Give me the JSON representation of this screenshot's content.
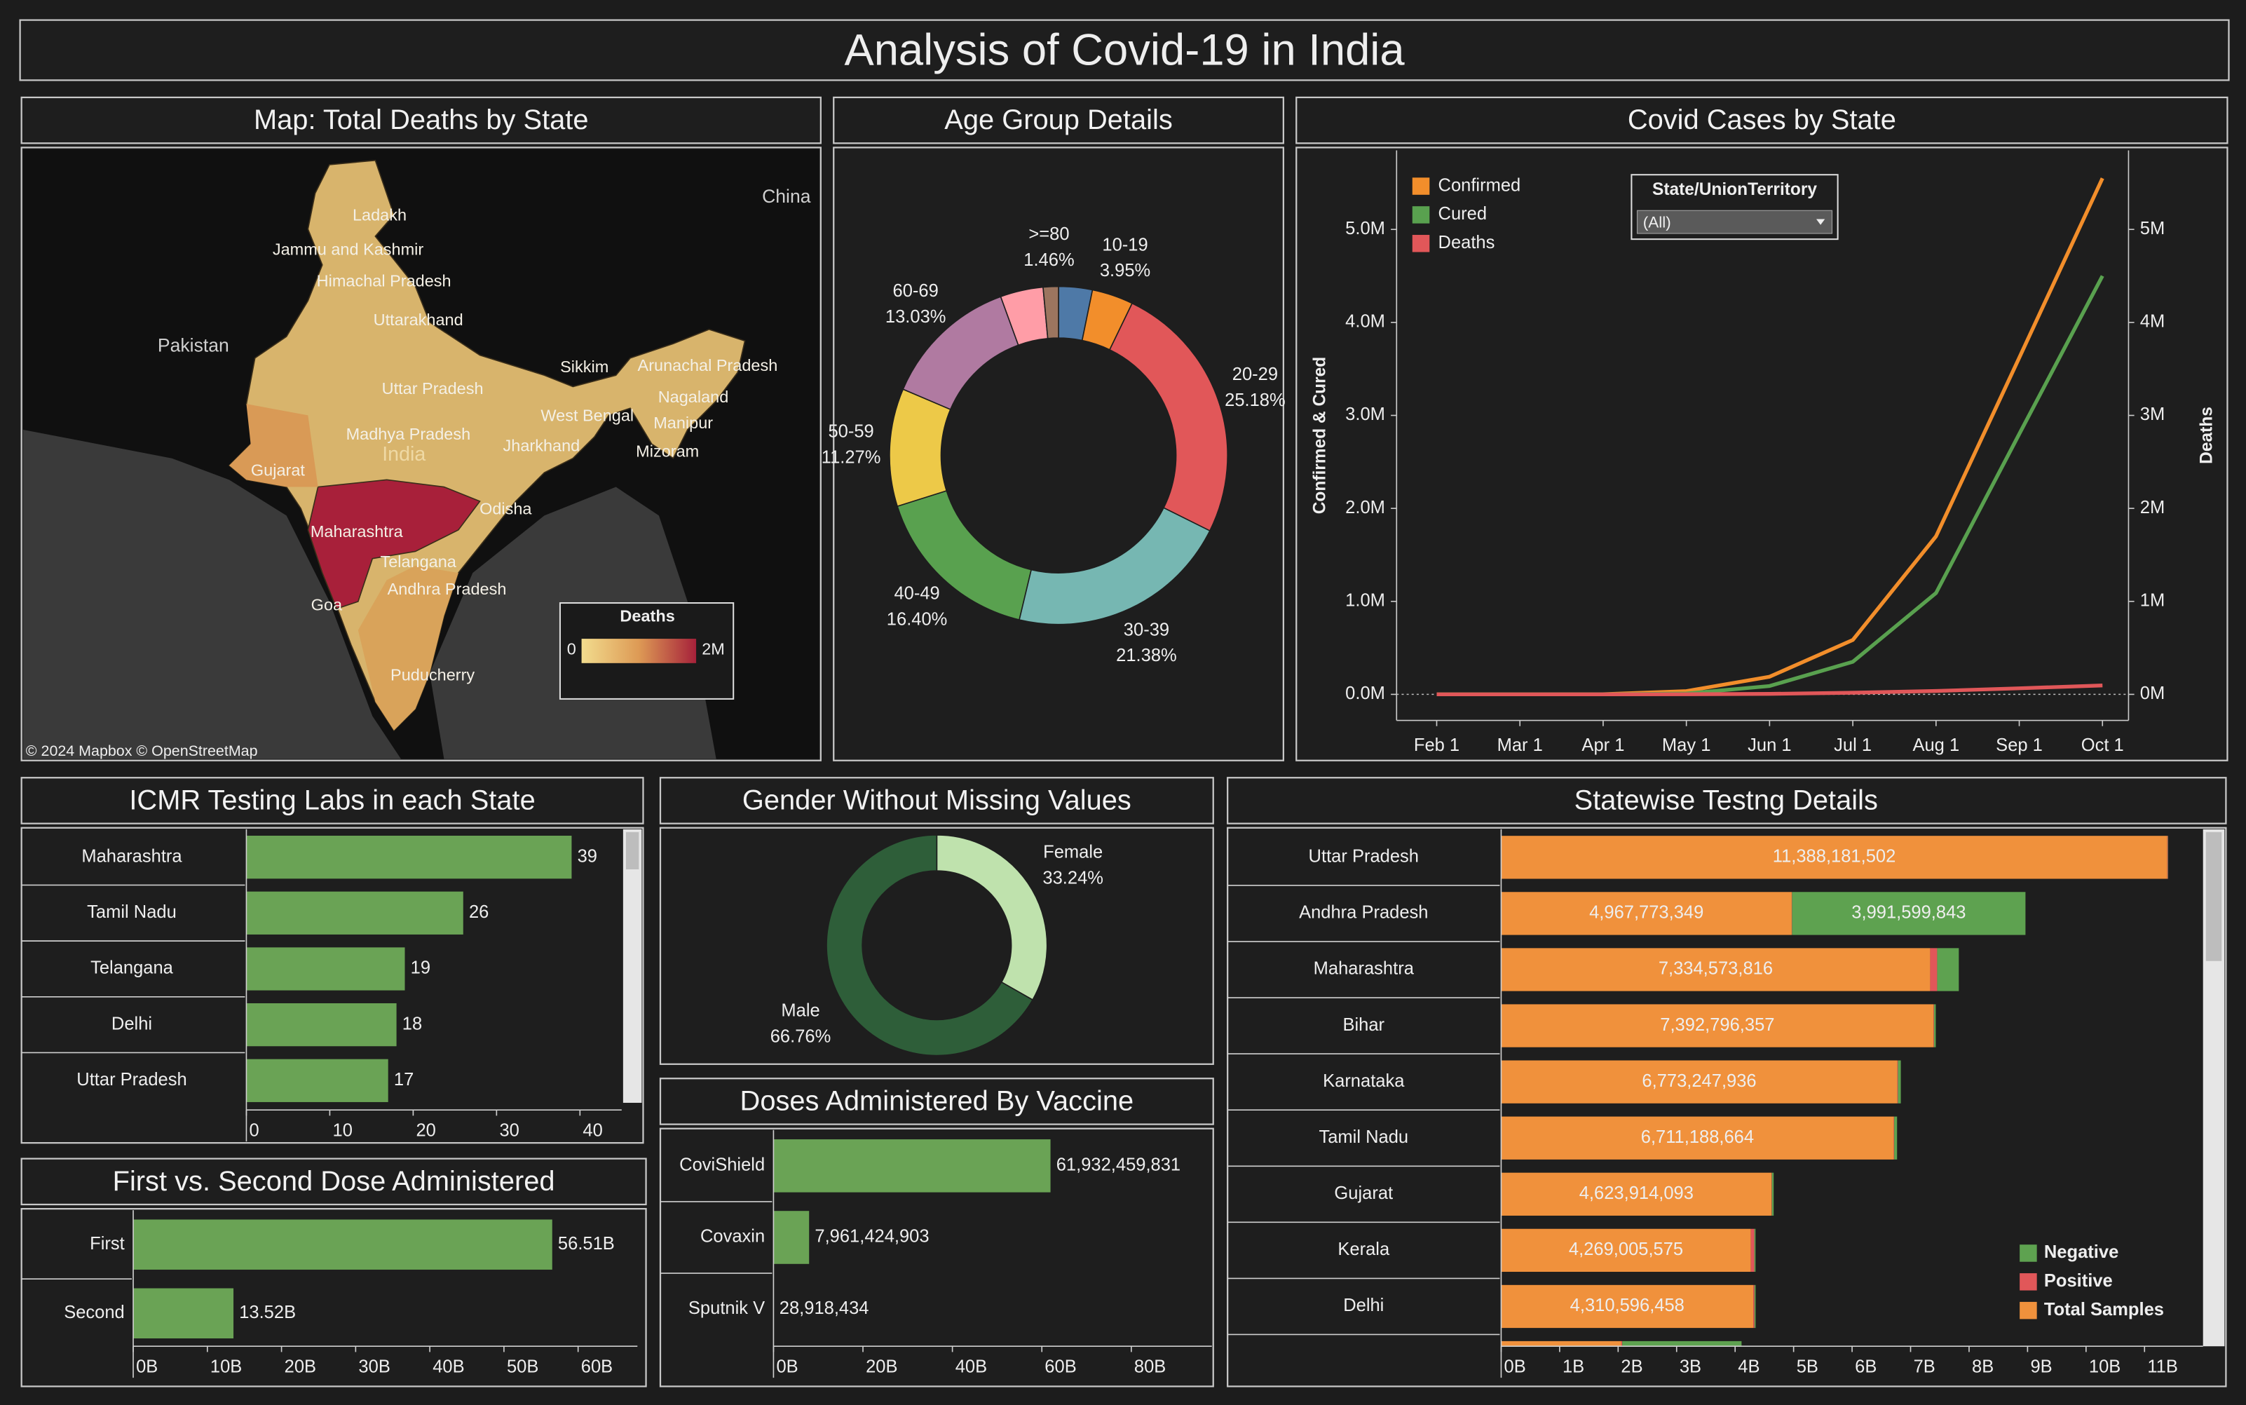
{
  "title": "Analysis of Covid-19 in India",
  "map": {
    "title": "Map: Total Deaths by State",
    "places": [
      "Ladakh",
      "Jammu and Kashmir",
      "Himachal Pradesh",
      "Uttarakhand",
      "Pakistan",
      "China",
      "Sikkim",
      "Arunachal Pradesh",
      "Nagaland",
      "West Bengal",
      "Manipur",
      "Uttar Pradesh",
      "Madhya Pradesh",
      "Jharkhand",
      "India",
      "Mizoram",
      "Gujarat",
      "Odisha",
      "Maharashtra",
      "Telangana",
      "Andhra Pradesh",
      "Goa",
      "Puducherry"
    ],
    "legend": {
      "title": "Deaths",
      "min": "0",
      "max": "2M"
    },
    "credit": "© 2024 Mapbox  © OpenStreetMap"
  },
  "chart_data": [
    {
      "type": "pie",
      "donut": true,
      "title": "Age Group Details",
      "categories": [
        null,
        "10-19",
        "20-29",
        "30-39",
        "40-49",
        "50-59",
        "60-69",
        null,
        ">=80"
      ],
      "values": [
        3.22,
        3.95,
        25.18,
        21.38,
        16.4,
        11.27,
        13.03,
        4.1,
        1.46
      ],
      "value_labels": [
        null,
        "3.95%",
        "25.18%",
        "21.38%",
        "16.40%",
        "11.27%",
        "13.03%",
        null,
        "1.46%"
      ],
      "colors": [
        "#4e79a7",
        "#f28e2b",
        "#e15759",
        "#76b7b2",
        "#59a14f",
        "#edc948",
        "#b07aa1",
        "#ff9da7",
        "#9c755f"
      ]
    },
    {
      "type": "line",
      "title": "Covid Cases by State",
      "x": [
        "Feb 1",
        "Mar 1",
        "Apr 1",
        "May 1",
        "Jun 1",
        "Jul 1",
        "Aug 1",
        "Sep 1",
        "Oct 1"
      ],
      "series": [
        {
          "name": "Confirmed",
          "color": "#f28e2b",
          "values": [
            1,
            3,
            1998,
            35000,
            190000,
            585000,
            1700000,
            3620000,
            5550000
          ]
        },
        {
          "name": "Cured",
          "color": "#59a14f",
          "values": [
            0,
            3,
            150,
            9000,
            90000,
            350000,
            1090000,
            2800000,
            4500000
          ]
        },
        {
          "name": "Deaths",
          "color": "#e15759",
          "axis": "y2",
          "values": [
            0,
            0,
            50,
            1150,
            5400,
            17400,
            36500,
            65300,
            96000
          ]
        }
      ],
      "ylim": [
        -280000,
        5850000
      ],
      "yticks": [
        {
          "value": 0,
          "label": "0.0M"
        },
        {
          "value": 1000000,
          "label": "1.0M"
        },
        {
          "value": 2000000,
          "label": "2.0M"
        },
        {
          "value": 3000000,
          "label": "3.0M"
        },
        {
          "value": 4000000,
          "label": "4.0M"
        },
        {
          "value": 5000000,
          "label": "5.0M"
        }
      ],
      "y2lim": [
        -280000,
        5850000
      ],
      "y2ticks": [
        {
          "value": 0,
          "label": "0M"
        },
        {
          "value": 1000000,
          "label": "1M"
        },
        {
          "value": 2000000,
          "label": "2M"
        },
        {
          "value": 3000000,
          "label": "3M"
        },
        {
          "value": 4000000,
          "label": "4M"
        },
        {
          "value": 5000000,
          "label": "5M"
        }
      ],
      "ylabel": "Confirmed & Cured",
      "y2label": "Deaths",
      "legend": "top-left",
      "filter": {
        "title": "State/UnionTerritory",
        "value": "(All)"
      }
    },
    {
      "type": "hbar",
      "title": "ICMR Testing Labs in each State",
      "categories": [
        "Maharashtra",
        "Tamil Nadu",
        "Telangana",
        "Delhi",
        "Uttar Pradesh"
      ],
      "values": [
        39,
        26,
        19,
        18,
        17
      ],
      "color": "#6aa355",
      "xlim": [
        0,
        45
      ],
      "xticks": [
        0,
        10,
        20,
        30,
        40
      ]
    },
    {
      "type": "pie",
      "donut": true,
      "title": "Gender Without Missing Values",
      "categories": [
        "Female",
        "Male"
      ],
      "values": [
        33.24,
        66.76
      ],
      "value_labels": [
        "33.24%",
        "66.76%"
      ],
      "colors": [
        "#bfe2ad",
        "#2e5e39"
      ]
    },
    {
      "type": "hbar",
      "title": "First vs. Second Dose Administered",
      "categories": [
        "First",
        "Second"
      ],
      "values": [
        56510000000,
        13520000000
      ],
      "value_labels": [
        "56.51B",
        "13.52B"
      ],
      "color": "#6aa355",
      "xlim": [
        0,
        68000000000
      ],
      "xticks": [
        {
          "value": 0,
          "label": "0B"
        },
        {
          "value": 10000000000,
          "label": "10B"
        },
        {
          "value": 20000000000,
          "label": "20B"
        },
        {
          "value": 30000000000,
          "label": "30B"
        },
        {
          "value": 40000000000,
          "label": "40B"
        },
        {
          "value": 50000000000,
          "label": "50B"
        },
        {
          "value": 60000000000,
          "label": "60B"
        }
      ]
    },
    {
      "type": "hbar",
      "title": "Doses Administered By Vaccine",
      "categories": [
        "CoviShield",
        "Covaxin",
        "Sputnik V"
      ],
      "values": [
        61932459831,
        7961424903,
        28918434
      ],
      "value_labels": [
        "61,932,459,831",
        "7,961,424,903",
        "28,918,434"
      ],
      "color": "#6aa355",
      "xlim": [
        0,
        98000000000
      ],
      "xticks": [
        {
          "value": 0,
          "label": "0B"
        },
        {
          "value": 20000000000,
          "label": "20B"
        },
        {
          "value": 40000000000,
          "label": "40B"
        },
        {
          "value": 60000000000,
          "label": "60B"
        },
        {
          "value": 80000000000,
          "label": "80B"
        }
      ]
    },
    {
      "type": "hbar",
      "stacked": true,
      "title": "Statewise Testng Details",
      "legend": "bottom-right",
      "categories": [
        "Uttar Pradesh",
        "Andhra Pradesh",
        "Maharashtra",
        "Bihar",
        "Karnataka",
        "Tamil Nadu",
        "Gujarat",
        "Kerala",
        "Delhi",
        null
      ],
      "series": [
        {
          "name": "Total Samples",
          "color": "#f0913c",
          "values": [
            11388181502,
            4967773349,
            7334573816,
            7392796357,
            6773247936,
            6711188664,
            4623914093,
            4269005575,
            4310596458,
            2050000000
          ],
          "value_labels": [
            "11,388,181,502",
            "4,967,773,349",
            "7,334,573,816",
            "7,392,796,357",
            "6,773,247,936",
            "6,711,188,664",
            "4,623,914,093",
            "4,269,005,575",
            "4,310,596,458",
            null
          ]
        },
        {
          "name": "Positive",
          "color": "#e15759",
          "values": [
            10000000,
            5000000,
            120000000,
            8000000,
            10000000,
            8000000,
            5000000,
            60000000,
            20000000,
            20000000
          ]
        },
        {
          "name": "Negative",
          "color": "#5ea250",
          "values": [
            5000000,
            3991599843,
            370000000,
            30000000,
            50000000,
            50000000,
            30000000,
            20000000,
            20000000,
            2040000000
          ],
          "value_labels": [
            null,
            "3,991,599,843",
            null,
            null,
            null,
            null,
            null,
            null,
            null,
            null
          ]
        }
      ],
      "xlim": [
        0,
        12000000000
      ],
      "xticks": [
        {
          "value": 0,
          "label": "0B"
        },
        {
          "value": 1000000000,
          "label": "1B"
        },
        {
          "value": 2000000000,
          "label": "2B"
        },
        {
          "value": 3000000000,
          "label": "3B"
        },
        {
          "value": 4000000000,
          "label": "4B"
        },
        {
          "value": 5000000000,
          "label": "5B"
        },
        {
          "value": 6000000000,
          "label": "6B"
        },
        {
          "value": 7000000000,
          "label": "7B"
        },
        {
          "value": 8000000000,
          "label": "8B"
        },
        {
          "value": 9000000000,
          "label": "9B"
        },
        {
          "value": 10000000000,
          "label": "10B"
        },
        {
          "value": 11000000000,
          "label": "11B"
        }
      ]
    }
  ]
}
